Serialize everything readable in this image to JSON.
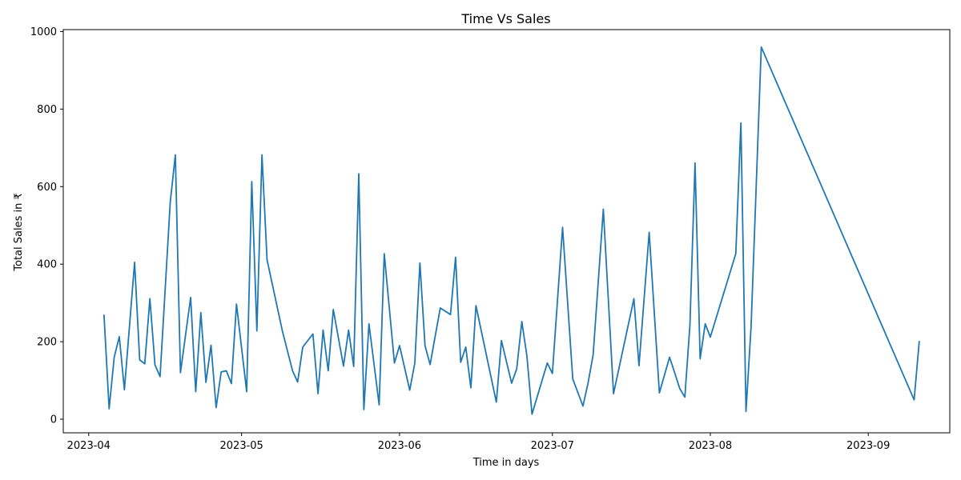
{
  "chart_data": {
    "type": "line",
    "title": "Time Vs Sales",
    "xlabel": "Time in days",
    "ylabel": "Total Sales in ₹",
    "xlim": [
      "2023-03-27",
      "2023-09-17"
    ],
    "ylim": [
      -35,
      1005
    ],
    "x_ticks": [
      "2023-04-01",
      "2023-05-01",
      "2023-06-01",
      "2023-07-01",
      "2023-08-01",
      "2023-09-01"
    ],
    "x_tick_labels": [
      "2023-04",
      "2023-05",
      "2023-06",
      "2023-07",
      "2023-08",
      "2023-09"
    ],
    "y_ticks": [
      0,
      200,
      400,
      600,
      800,
      1000
    ],
    "y_tick_labels": [
      "0",
      "200",
      "400",
      "600",
      "800",
      "1000"
    ],
    "grid": false,
    "series": [
      {
        "color": "#1f77b4",
        "x": [
          "2023-04-04",
          "2023-04-05",
          "2023-04-06",
          "2023-04-07",
          "2023-04-08",
          "2023-04-10",
          "2023-04-11",
          "2023-04-12",
          "2023-04-13",
          "2023-04-14",
          "2023-04-15",
          "2023-04-17",
          "2023-04-18",
          "2023-04-19",
          "2023-04-21",
          "2023-04-22",
          "2023-04-23",
          "2023-04-24",
          "2023-04-25",
          "2023-04-26",
          "2023-04-27",
          "2023-04-28",
          "2023-04-29",
          "2023-04-30",
          "2023-05-02",
          "2023-05-03",
          "2023-05-04",
          "2023-05-05",
          "2023-05-06",
          "2023-05-09",
          "2023-05-11",
          "2023-05-12",
          "2023-05-13",
          "2023-05-15",
          "2023-05-16",
          "2023-05-17",
          "2023-05-18",
          "2023-05-19",
          "2023-05-21",
          "2023-05-22",
          "2023-05-23",
          "2023-05-24",
          "2023-05-25",
          "2023-05-26",
          "2023-05-28",
          "2023-05-29",
          "2023-05-31",
          "2023-06-01",
          "2023-06-03",
          "2023-06-04",
          "2023-06-05",
          "2023-06-06",
          "2023-06-07",
          "2023-06-09",
          "2023-06-11",
          "2023-06-12",
          "2023-06-13",
          "2023-06-14",
          "2023-06-15",
          "2023-06-16",
          "2023-06-20",
          "2023-06-21",
          "2023-06-23",
          "2023-06-24",
          "2023-06-25",
          "2023-06-26",
          "2023-06-27",
          "2023-06-30",
          "2023-07-01",
          "2023-07-03",
          "2023-07-05",
          "2023-07-07",
          "2023-07-08",
          "2023-07-09",
          "2023-07-11",
          "2023-07-13",
          "2023-07-17",
          "2023-07-18",
          "2023-07-20",
          "2023-07-22",
          "2023-07-24",
          "2023-07-25",
          "2023-07-26",
          "2023-07-27",
          "2023-07-28",
          "2023-07-29",
          "2023-07-30",
          "2023-07-31",
          "2023-08-01",
          "2023-08-06",
          "2023-08-07",
          "2023-08-08",
          "2023-08-09",
          "2023-08-11",
          "2023-09-10",
          "2023-09-11"
        ],
        "y": [
          268,
          27,
          160,
          213,
          76,
          405,
          153,
          143,
          311,
          140,
          110,
          560,
          682,
          120,
          314,
          71,
          275,
          95,
          191,
          30,
          122,
          125,
          92,
          297,
          71,
          613,
          228,
          682,
          411,
          228,
          125,
          96,
          186,
          220,
          66,
          230,
          125,
          283,
          137,
          230,
          136,
          633,
          25,
          246,
          37,
          427,
          145,
          190,
          75,
          145,
          403,
          190,
          141,
          287,
          270,
          418,
          147,
          186,
          81,
          293,
          44,
          203,
          93,
          130,
          252,
          163,
          13,
          145,
          118,
          495,
          104,
          34,
          93,
          166,
          542,
          66,
          311,
          138,
          482,
          68,
          160,
          120,
          79,
          57,
          244,
          661,
          156,
          246,
          212,
          427,
          764,
          20,
          239,
          960,
          50,
          200
        ]
      }
    ]
  }
}
